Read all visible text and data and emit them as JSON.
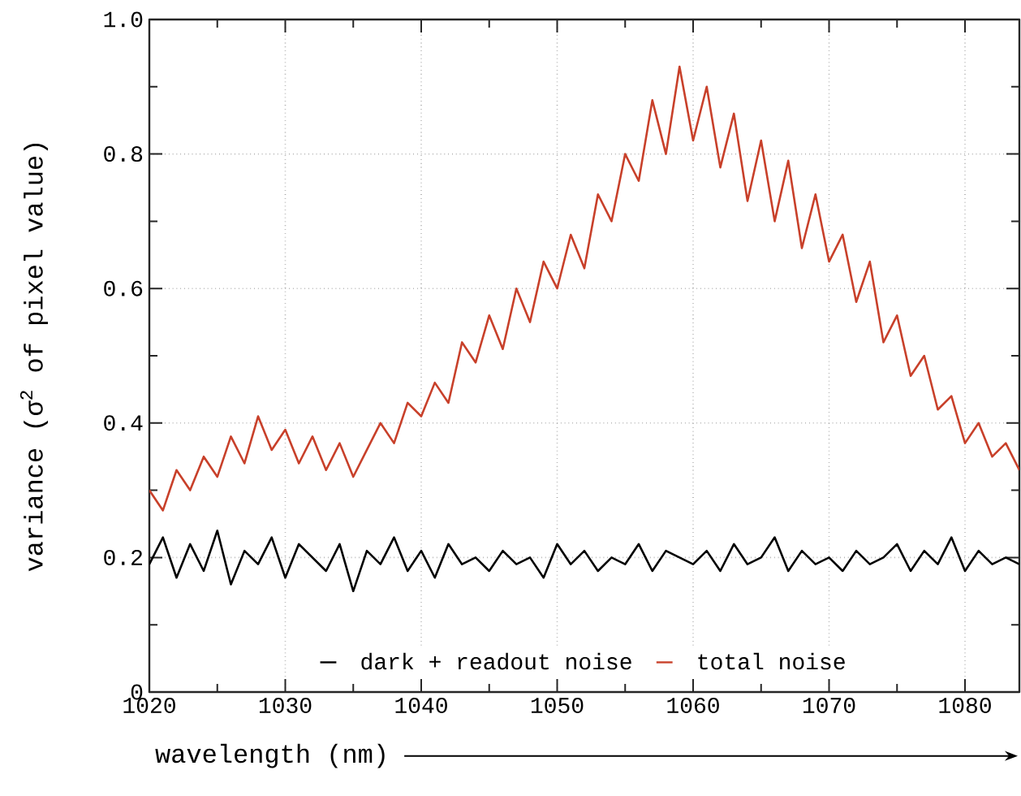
{
  "chart_data": {
    "type": "line",
    "xlabel": "wavelength (nm)",
    "ylabel": "variance (σ$^{2}$ of pixel value)",
    "x": [
      1020,
      1021,
      1022,
      1023,
      1024,
      1025,
      1026,
      1027,
      1028,
      1029,
      1030,
      1031,
      1032,
      1033,
      1034,
      1035,
      1036,
      1037,
      1038,
      1039,
      1040,
      1041,
      1042,
      1043,
      1044,
      1045,
      1046,
      1047,
      1048,
      1049,
      1050,
      1051,
      1052,
      1053,
      1054,
      1055,
      1056,
      1057,
      1058,
      1059,
      1060,
      1061,
      1062,
      1063,
      1064,
      1065,
      1066,
      1067,
      1068,
      1069,
      1070,
      1071,
      1072,
      1073,
      1074,
      1075,
      1076,
      1077,
      1078,
      1079,
      1080,
      1081,
      1082,
      1083,
      1084
    ],
    "series": [
      {
        "name": "dark + readout noise",
        "color": "#000000",
        "values": [
          0.19,
          0.23,
          0.17,
          0.22,
          0.18,
          0.24,
          0.16,
          0.21,
          0.19,
          0.23,
          0.17,
          0.22,
          0.2,
          0.18,
          0.22,
          0.15,
          0.21,
          0.19,
          0.23,
          0.18,
          0.21,
          0.17,
          0.22,
          0.19,
          0.2,
          0.18,
          0.21,
          0.19,
          0.2,
          0.17,
          0.22,
          0.19,
          0.21,
          0.18,
          0.2,
          0.19,
          0.22,
          0.18,
          0.21,
          0.2,
          0.19,
          0.21,
          0.18,
          0.22,
          0.19,
          0.2,
          0.23,
          0.18,
          0.21,
          0.19,
          0.2,
          0.18,
          0.21,
          0.19,
          0.2,
          0.22,
          0.18,
          0.21,
          0.19,
          0.23,
          0.18,
          0.21,
          0.19,
          0.2,
          0.19
        ]
      },
      {
        "name": "total noise",
        "color": "#c8402a",
        "values": [
          0.3,
          0.27,
          0.33,
          0.3,
          0.35,
          0.32,
          0.38,
          0.34,
          0.41,
          0.36,
          0.39,
          0.34,
          0.38,
          0.33,
          0.37,
          0.32,
          0.36,
          0.4,
          0.37,
          0.43,
          0.41,
          0.46,
          0.43,
          0.52,
          0.49,
          0.56,
          0.51,
          0.6,
          0.55,
          0.64,
          0.6,
          0.68,
          0.63,
          0.74,
          0.7,
          0.8,
          0.76,
          0.88,
          0.8,
          0.93,
          0.82,
          0.9,
          0.78,
          0.86,
          0.73,
          0.82,
          0.7,
          0.79,
          0.66,
          0.74,
          0.64,
          0.68,
          0.58,
          0.64,
          0.52,
          0.56,
          0.47,
          0.5,
          0.42,
          0.44,
          0.37,
          0.4,
          0.35,
          0.37,
          0.33
        ]
      }
    ],
    "xlim": [
      1020,
      1084
    ],
    "ylim": [
      0,
      1
    ],
    "xticks": [
      1020,
      1030,
      1040,
      1050,
      1060,
      1070,
      1080
    ],
    "yticks": [
      0,
      0.2,
      0.4,
      0.6,
      0.8,
      {
        "value": 1,
        "label": "1.0"
      }
    ],
    "grid": true,
    "legend": "bottom"
  }
}
